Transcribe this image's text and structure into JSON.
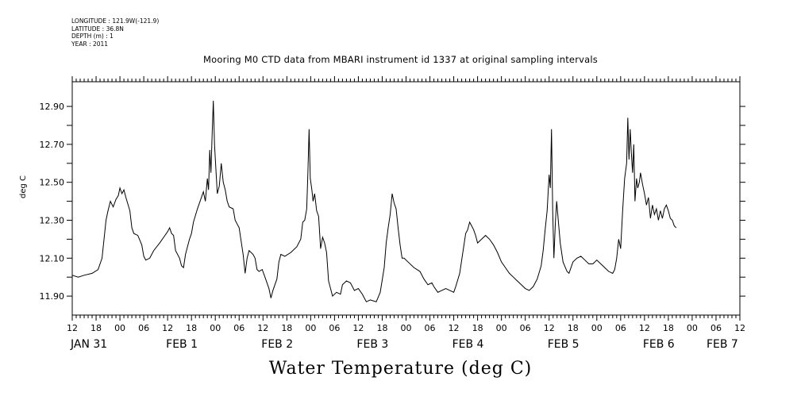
{
  "meta": {
    "longitude": "LONGITUDE : 121.9W(-121.9)",
    "latitude": "LATITUDE : 36.8N",
    "depth": "DEPTH (m) : 1",
    "year": "YEAR : 2011"
  },
  "chart_data": {
    "type": "line",
    "title": "Mooring M0 CTD data from MBARI instrument id 1337 at original sampling intervals",
    "ylabel": "deg C",
    "xlabel": "Water Temperature (deg C)",
    "ylim": [
      11.8,
      13.03
    ],
    "yticks": [
      11.9,
      12.1,
      12.3,
      12.5,
      12.7,
      12.9
    ],
    "ytick_labels": [
      "11.90",
      "12.10",
      "12.30",
      "12.50",
      "12.70",
      "12.90"
    ],
    "xlim_hours_from_jan31_12": [
      0,
      168
    ],
    "x_hour_labels": [
      "12",
      "18",
      "00",
      "06",
      "12",
      "18",
      "00",
      "06",
      "12",
      "18",
      "00",
      "06",
      "12",
      "18",
      "00",
      "06",
      "12",
      "18",
      "00",
      "06",
      "12",
      "18",
      "00",
      "06",
      "12",
      "18",
      "00",
      "06",
      "12"
    ],
    "x_date_labels": [
      {
        "hour": 0,
        "label": "JAN 31"
      },
      {
        "hour": 24,
        "label": "FEB  1"
      },
      {
        "hour": 48,
        "label": "FEB  2"
      },
      {
        "hour": 72,
        "label": "FEB  3"
      },
      {
        "hour": 96,
        "label": "FEB  4"
      },
      {
        "hour": 120,
        "label": "FEB  5"
      },
      {
        "hour": 144,
        "label": "FEB  6"
      },
      {
        "hour": 160,
        "label": "FEB  7"
      }
    ],
    "grid": false,
    "series": [
      {
        "values": [
          [
            0,
            12.01
          ],
          [
            1.5,
            12.0
          ],
          [
            3,
            12.01
          ],
          [
            5,
            12.02
          ],
          [
            6.5,
            12.04
          ],
          [
            7.5,
            12.1
          ],
          [
            8.5,
            12.3
          ],
          [
            9,
            12.35
          ],
          [
            9.6,
            12.4
          ],
          [
            10.3,
            12.37
          ],
          [
            11,
            12.41
          ],
          [
            11.6,
            12.43
          ],
          [
            12,
            12.47
          ],
          [
            12.5,
            12.44
          ],
          [
            13,
            12.46
          ],
          [
            13.5,
            12.42
          ],
          [
            14.5,
            12.35
          ],
          [
            15,
            12.26
          ],
          [
            15.5,
            12.23
          ],
          [
            16.5,
            12.22
          ],
          [
            17.5,
            12.17
          ],
          [
            18,
            12.11
          ],
          [
            18.5,
            12.09
          ],
          [
            19.5,
            12.1
          ],
          [
            20.5,
            12.14
          ],
          [
            22,
            12.18
          ],
          [
            23,
            12.21
          ],
          [
            24,
            12.24
          ],
          [
            24.5,
            12.26
          ],
          [
            25,
            12.23
          ],
          [
            25.5,
            12.22
          ],
          [
            26,
            12.14
          ],
          [
            27,
            12.1
          ],
          [
            27.5,
            12.06
          ],
          [
            28,
            12.05
          ],
          [
            28.5,
            12.12
          ],
          [
            29.5,
            12.2
          ],
          [
            30,
            12.23
          ],
          [
            30.5,
            12.29
          ],
          [
            31.5,
            12.36
          ],
          [
            32.5,
            12.42
          ],
          [
            33,
            12.45
          ],
          [
            33.5,
            12.4
          ],
          [
            34,
            12.52
          ],
          [
            34.3,
            12.46
          ],
          [
            34.6,
            12.67
          ],
          [
            34.9,
            12.55
          ],
          [
            35.2,
            12.75
          ],
          [
            35.5,
            12.93
          ],
          [
            35.8,
            12.7
          ],
          [
            36.2,
            12.55
          ],
          [
            36.5,
            12.44
          ],
          [
            37,
            12.48
          ],
          [
            37.5,
            12.6
          ],
          [
            38,
            12.5
          ],
          [
            38.5,
            12.46
          ],
          [
            39,
            12.4
          ],
          [
            39.5,
            12.37
          ],
          [
            40.5,
            12.36
          ],
          [
            41,
            12.3
          ],
          [
            42,
            12.26
          ],
          [
            42.5,
            12.19
          ],
          [
            43,
            12.12
          ],
          [
            43.5,
            12.02
          ],
          [
            44,
            12.1
          ],
          [
            44.5,
            12.14
          ],
          [
            45.5,
            12.12
          ],
          [
            46,
            12.1
          ],
          [
            46.5,
            12.04
          ],
          [
            47,
            12.03
          ],
          [
            47.8,
            12.04
          ],
          [
            48.5,
            12.0
          ],
          [
            49.5,
            11.94
          ],
          [
            50,
            11.89
          ],
          [
            50.5,
            11.93
          ],
          [
            51.5,
            11.99
          ],
          [
            52,
            12.08
          ],
          [
            52.5,
            12.12
          ],
          [
            53.5,
            12.11
          ],
          [
            55,
            12.13
          ],
          [
            56.5,
            12.16
          ],
          [
            57.5,
            12.2
          ],
          [
            58,
            12.29
          ],
          [
            58.5,
            12.3
          ],
          [
            59,
            12.36
          ],
          [
            59.3,
            12.55
          ],
          [
            59.6,
            12.78
          ],
          [
            59.9,
            12.52
          ],
          [
            60.3,
            12.46
          ],
          [
            60.6,
            12.4
          ],
          [
            61,
            12.44
          ],
          [
            61.5,
            12.35
          ],
          [
            62,
            12.32
          ],
          [
            62.5,
            12.15
          ],
          [
            63,
            12.21
          ],
          [
            63.5,
            12.18
          ],
          [
            64,
            12.13
          ],
          [
            64.5,
            11.98
          ],
          [
            65.5,
            11.9
          ],
          [
            66.5,
            11.92
          ],
          [
            67.5,
            11.91
          ],
          [
            68,
            11.96
          ],
          [
            69,
            11.98
          ],
          [
            70,
            11.97
          ],
          [
            71,
            11.93
          ],
          [
            72,
            11.94
          ],
          [
            73,
            11.91
          ],
          [
            74,
            11.87
          ],
          [
            75,
            11.88
          ],
          [
            76.5,
            11.87
          ],
          [
            77.5,
            11.92
          ],
          [
            78.5,
            12.05
          ],
          [
            79,
            12.18
          ],
          [
            79.5,
            12.26
          ],
          [
            80,
            12.33
          ],
          [
            80.5,
            12.44
          ],
          [
            81,
            12.39
          ],
          [
            81.5,
            12.36
          ],
          [
            82,
            12.26
          ],
          [
            82.5,
            12.17
          ],
          [
            83,
            12.1
          ],
          [
            83.5,
            12.1
          ],
          [
            84.5,
            12.08
          ],
          [
            86,
            12.05
          ],
          [
            87.5,
            12.03
          ],
          [
            88.5,
            11.99
          ],
          [
            89.5,
            11.96
          ],
          [
            90.5,
            11.97
          ],
          [
            91,
            11.95
          ],
          [
            92,
            11.92
          ],
          [
            93,
            11.93
          ],
          [
            94,
            11.94
          ],
          [
            95,
            11.93
          ],
          [
            96,
            11.92
          ],
          [
            96.5,
            11.95
          ],
          [
            97.5,
            12.02
          ],
          [
            98,
            12.09
          ],
          [
            98.5,
            12.16
          ],
          [
            99,
            12.23
          ],
          [
            99.5,
            12.25
          ],
          [
            100,
            12.29
          ],
          [
            100.5,
            12.27
          ],
          [
            101,
            12.25
          ],
          [
            101.5,
            12.22
          ],
          [
            102,
            12.18
          ],
          [
            103,
            12.2
          ],
          [
            104,
            12.22
          ],
          [
            105,
            12.2
          ],
          [
            106,
            12.17
          ],
          [
            107,
            12.13
          ],
          [
            108,
            12.08
          ],
          [
            109,
            12.05
          ],
          [
            110,
            12.02
          ],
          [
            111,
            12.0
          ],
          [
            112,
            11.98
          ],
          [
            113,
            11.96
          ],
          [
            114,
            11.94
          ],
          [
            115,
            11.93
          ],
          [
            116,
            11.95
          ],
          [
            117,
            11.99
          ],
          [
            118,
            12.06
          ],
          [
            118.5,
            12.14
          ],
          [
            119,
            12.25
          ],
          [
            119.5,
            12.35
          ],
          [
            120,
            12.54
          ],
          [
            120.3,
            12.47
          ],
          [
            120.6,
            12.78
          ],
          [
            120.9,
            12.35
          ],
          [
            121.2,
            12.1
          ],
          [
            121.6,
            12.3
          ],
          [
            121.9,
            12.4
          ],
          [
            122.3,
            12.3
          ],
          [
            122.8,
            12.18
          ],
          [
            123.5,
            12.08
          ],
          [
            124.5,
            12.03
          ],
          [
            125,
            12.02
          ],
          [
            126,
            12.08
          ],
          [
            127,
            12.1
          ],
          [
            128,
            12.11
          ],
          [
            129,
            12.09
          ],
          [
            130,
            12.07
          ],
          [
            131,
            12.07
          ],
          [
            132,
            12.09
          ],
          [
            133,
            12.07
          ],
          [
            134,
            12.05
          ],
          [
            135,
            12.03
          ],
          [
            136,
            12.02
          ],
          [
            136.5,
            12.04
          ],
          [
            137,
            12.1
          ],
          [
            137.5,
            12.2
          ],
          [
            138,
            12.15
          ],
          [
            138.5,
            12.35
          ],
          [
            139,
            12.52
          ],
          [
            139.5,
            12.6
          ],
          [
            139.8,
            12.84
          ],
          [
            140.1,
            12.62
          ],
          [
            140.4,
            12.78
          ],
          [
            140.7,
            12.65
          ],
          [
            141,
            12.55
          ],
          [
            141.3,
            12.7
          ],
          [
            141.6,
            12.4
          ],
          [
            142,
            12.52
          ],
          [
            142.3,
            12.47
          ],
          [
            142.7,
            12.5
          ],
          [
            143,
            12.55
          ],
          [
            143.5,
            12.49
          ],
          [
            144,
            12.44
          ],
          [
            144.5,
            12.38
          ],
          [
            145,
            12.42
          ],
          [
            145.5,
            12.31
          ],
          [
            146,
            12.38
          ],
          [
            146.5,
            12.33
          ],
          [
            147,
            12.36
          ],
          [
            147.5,
            12.3
          ],
          [
            148,
            12.35
          ],
          [
            148.5,
            12.31
          ],
          [
            149,
            12.36
          ],
          [
            149.5,
            12.38
          ],
          [
            150,
            12.35
          ],
          [
            150.5,
            12.31
          ],
          [
            151,
            12.3
          ],
          [
            151.5,
            12.27
          ],
          [
            152,
            12.26
          ]
        ]
      }
    ]
  }
}
